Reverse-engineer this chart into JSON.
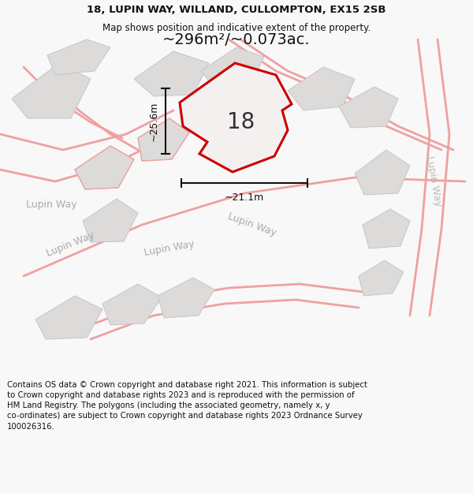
{
  "title_line1": "18, LUPIN WAY, WILLAND, CULLOMPTON, EX15 2SB",
  "title_line2": "Map shows position and indicative extent of the property.",
  "area_text": "~296m²/~0.073ac.",
  "label_18": "18",
  "dim_h": "~25.6m",
  "dim_w": "~21.1m",
  "footer": "Contains OS data © Crown copyright and database right 2021. This information is subject to Crown copyright and database rights 2023 and is reproduced with the permission of HM Land Registry. The polygons (including the associated geometry, namely x, y co-ordinates) are subject to Crown copyright and database rights 2023 Ordnance Survey 100026316.",
  "bg_color": "#f8f8f8",
  "map_bg": "#eeecec",
  "road_color": "#f0a0a0",
  "building_fill": "#dddada",
  "building_edge": "#c8c4c4",
  "highlight_fill": "#f5f0f0",
  "highlight_edge": "#cc0000",
  "dim_color": "#111111",
  "label_color": "#aaaaaa",
  "title_color": "#111111",
  "footer_color": "#111111"
}
